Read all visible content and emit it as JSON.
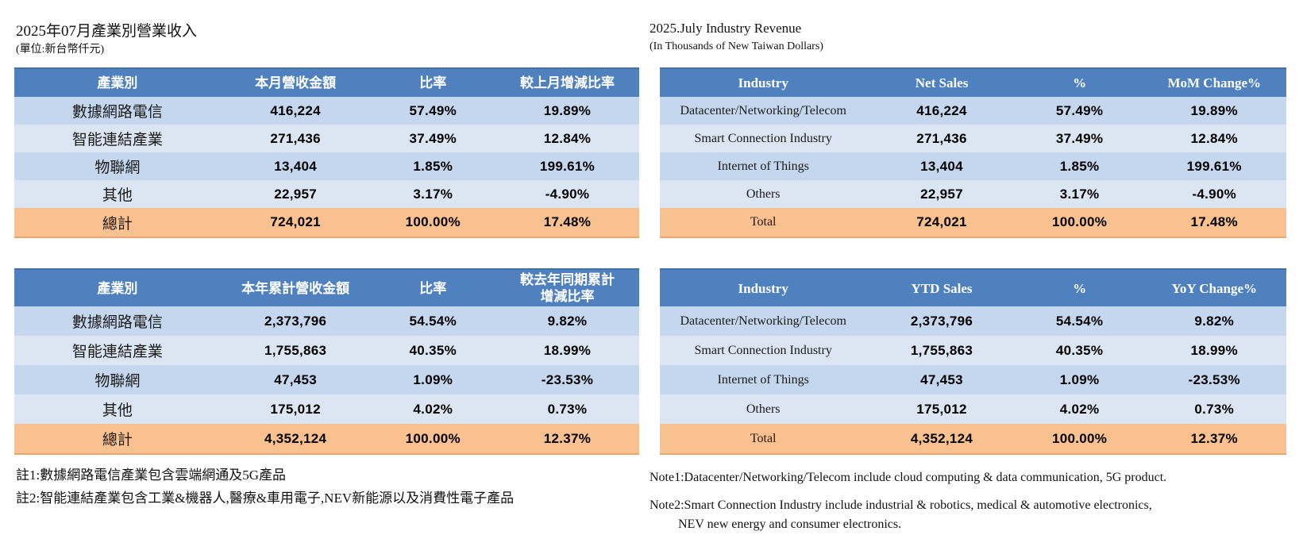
{
  "colors": {
    "header_bg": "#4e81bd",
    "header_text": "#ffffff",
    "row_odd": "#c5d7ee",
    "row_even": "#dce6f2",
    "total_bg": "#f9c18f"
  },
  "left": {
    "title": "2025年07月產業別營業收入",
    "subtitle": "(單位:新台幣仟元)",
    "monthly_table": {
      "headers": [
        "產業別",
        "本月營收金額",
        "比率",
        "較上月增減比率"
      ],
      "rows": [
        [
          "數據網路電信",
          "416,224",
          "57.49%",
          "19.89%"
        ],
        [
          "智能連結產業",
          "271,436",
          "37.49%",
          "12.84%"
        ],
        [
          "物聯網",
          "13,404",
          "1.85%",
          "199.61%"
        ],
        [
          "其他",
          "22,957",
          "3.17%",
          "-4.90%"
        ]
      ],
      "total": [
        "總計",
        "724,021",
        "100.00%",
        "17.48%"
      ]
    },
    "ytd_table": {
      "headers": [
        "產業別",
        "本年累計營收金額",
        "比率",
        "較去年同期累計\n增減比率"
      ],
      "rows": [
        [
          "數據網路電信",
          "2,373,796",
          "54.54%",
          "9.82%"
        ],
        [
          "智能連結產業",
          "1,755,863",
          "40.35%",
          "18.99%"
        ],
        [
          "物聯網",
          "47,453",
          "1.09%",
          "-23.53%"
        ],
        [
          "其他",
          "175,012",
          "4.02%",
          "0.73%"
        ]
      ],
      "total": [
        "總計",
        "4,352,124",
        "100.00%",
        "12.37%"
      ]
    },
    "notes": [
      "註1:數據網路電信產業包含雲端網通及5G產品",
      "註2:智能連結產業包含工業&機器人,醫療&車用電子,NEV新能源以及消費性電子產品"
    ]
  },
  "right": {
    "title": "2025.July Industry Revenue",
    "subtitle": "(In Thousands of New Taiwan Dollars)",
    "monthly_table": {
      "headers": [
        "Industry",
        "Net Sales",
        "%",
        "MoM Change%"
      ],
      "rows": [
        [
          "Datacenter/Networking/Telecom",
          "416,224",
          "57.49%",
          "19.89%"
        ],
        [
          "Smart Connection Industry",
          "271,436",
          "37.49%",
          "12.84%"
        ],
        [
          "Internet of Things",
          "13,404",
          "1.85%",
          "199.61%"
        ],
        [
          "Others",
          "22,957",
          "3.17%",
          "-4.90%"
        ]
      ],
      "total": [
        "Total",
        "724,021",
        "100.00%",
        "17.48%"
      ]
    },
    "ytd_table": {
      "headers": [
        "Industry",
        "YTD Sales",
        "%",
        "YoY Change%"
      ],
      "rows": [
        [
          "Datacenter/Networking/Telecom",
          "2,373,796",
          "54.54%",
          "9.82%"
        ],
        [
          "Smart Connection Industry",
          "1,755,863",
          "40.35%",
          "18.99%"
        ],
        [
          "Internet of Things",
          "47,453",
          "1.09%",
          "-23.53%"
        ],
        [
          "Others",
          "175,012",
          "4.02%",
          "0.73%"
        ]
      ],
      "total": [
        "Total",
        "4,352,124",
        "100.00%",
        "12.37%"
      ]
    },
    "notes": [
      "Note1:Datacenter/Networking/Telecom include cloud computing & data communication, 5G product.",
      "Note2:Smart Connection Industry include industrial & robotics, medical & automotive electronics,",
      "NEV new energy and consumer electronics."
    ]
  }
}
